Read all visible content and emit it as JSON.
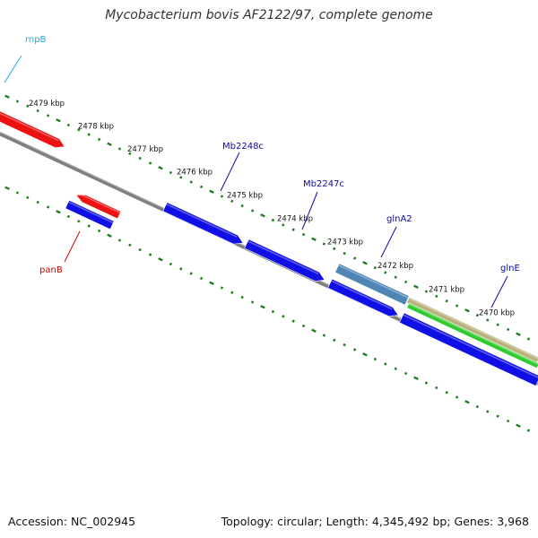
{
  "title": "Mycobacterium bovis AF2122/97, complete genome",
  "footer": {
    "accession": "Accession: NC_002945",
    "summary": "Topology: circular; Length: 4,345,492 bp; Genes: 3,968"
  },
  "colors": {
    "tick": "#1e7a1e",
    "backbone": "#808080",
    "gene_label": "#0a0aa8",
    "rna_label": "#22aadd",
    "red_label": "#cc0000",
    "blue_gene": "#1010e6",
    "red_gene": "#ee1111",
    "steel_gene": "#4f86b6",
    "green_gene": "#2ecc2e",
    "khaki_gene": "#b9b07a"
  },
  "kbp_labels": [
    "2479 kbp",
    "2478 kbp",
    "2477 kbp",
    "2476 kbp",
    "2475 kbp",
    "2474 kbp",
    "2473 kbp",
    "2472 kbp",
    "2471 kbp",
    "2470 kbp"
  ],
  "gene_labels": [
    {
      "name": "rnpB",
      "kind": "rna"
    },
    {
      "name": "panB",
      "kind": "red"
    },
    {
      "name": "Mb2248c",
      "kind": "gene"
    },
    {
      "name": "Mb2247c",
      "kind": "gene"
    },
    {
      "name": "glnA2",
      "kind": "gene"
    },
    {
      "name": "glnE",
      "kind": "gene"
    }
  ]
}
